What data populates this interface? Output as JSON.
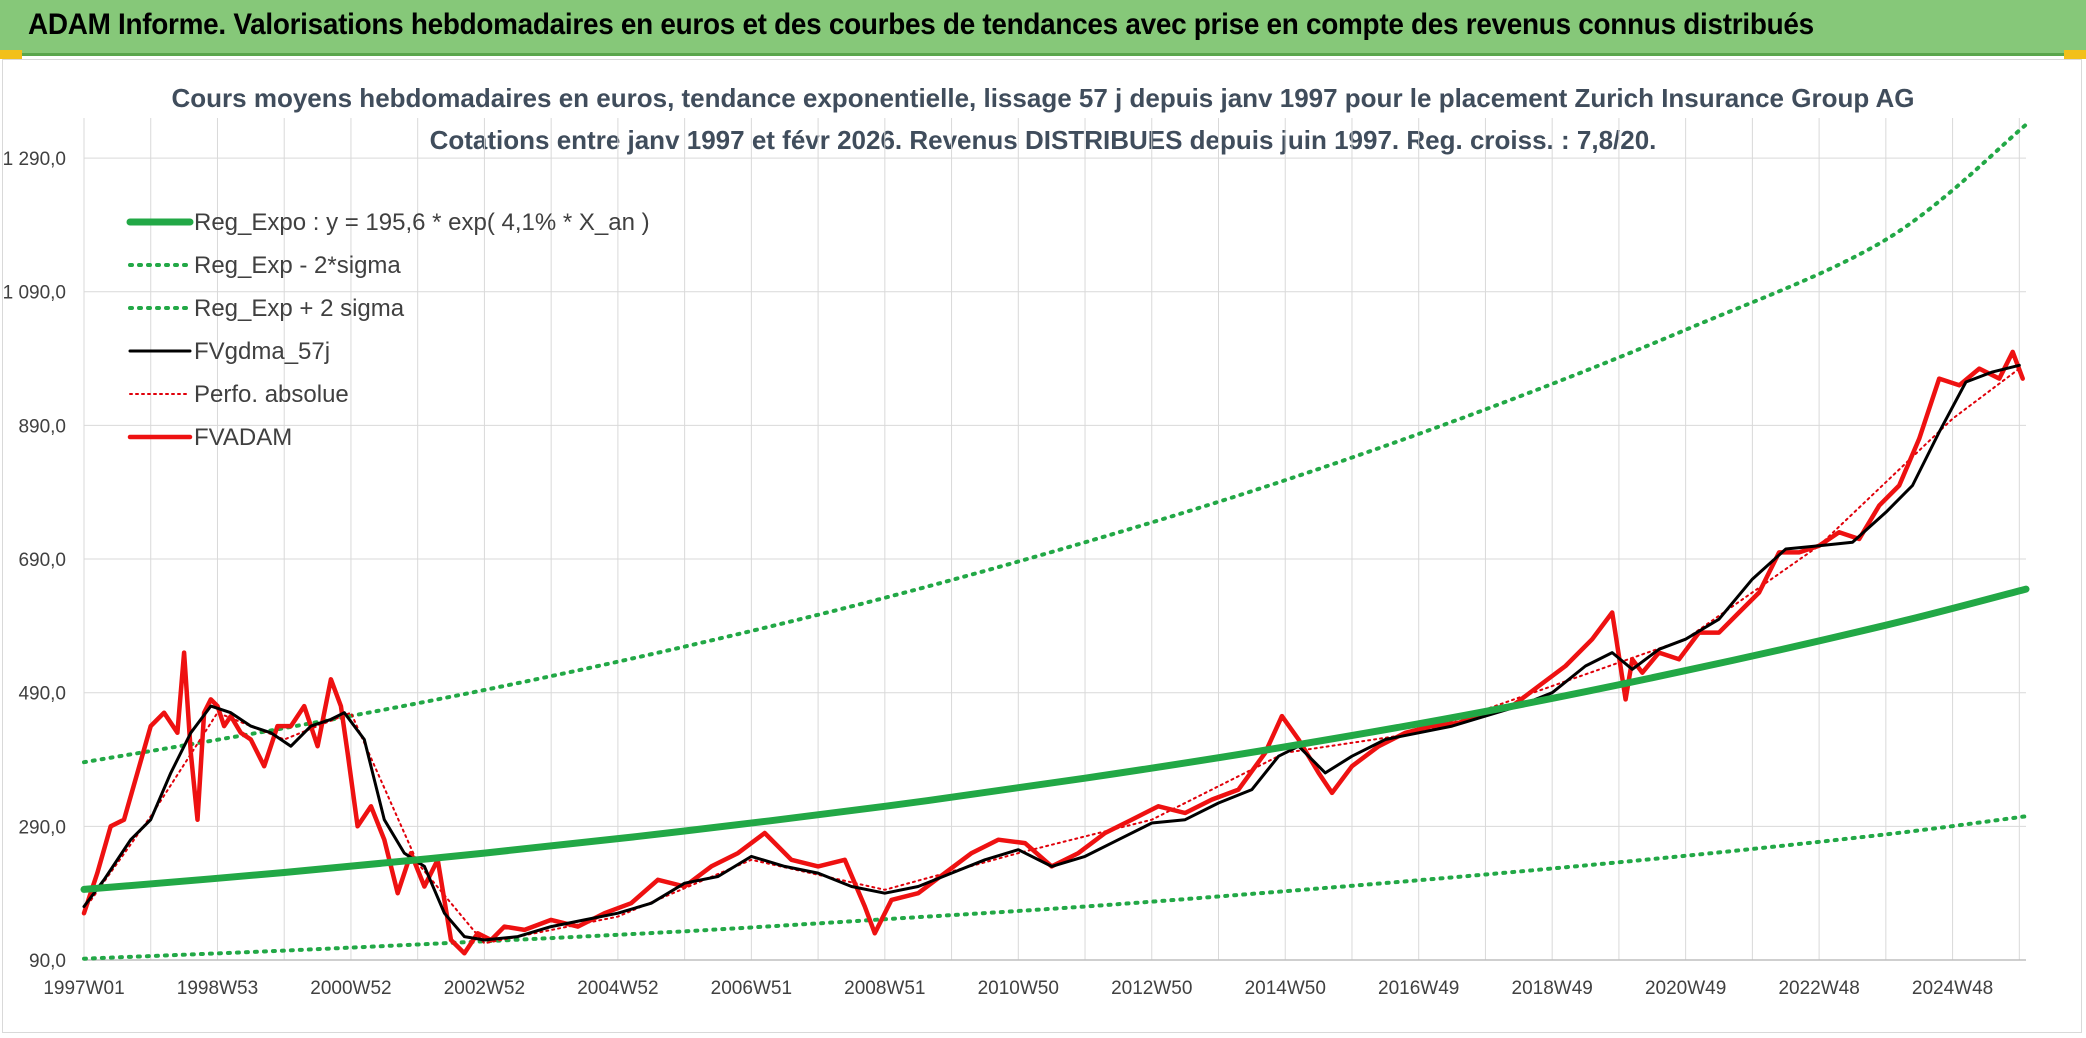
{
  "header": {
    "title": "ADAM Informe. Valorisations hebdomadaires en euros et des courbes de tendances avec prise en compte des revenus connus distribués"
  },
  "colors": {
    "header_bg": "#86c879",
    "reg_expo": "#22a846",
    "sigma": "#22a846",
    "fvgdma": "#000000",
    "perfo": "#e0000a",
    "fvadam": "#ee1111",
    "grid": "#d9d9d9"
  },
  "chart_data": {
    "type": "line",
    "title": "Cours moyens hebdomadaires en euros, tendance exponentielle, lissage 57 j depuis janv 1997 pour le placement Zurich Insurance Group AG",
    "subtitle": "Cotations entre janv 1997 et févr 2026. Revenus DISTRIBUES depuis juin 1997. Reg. croiss. : 7,8/20.",
    "xlabel": "",
    "ylabel": "",
    "x_range": [
      1997.0,
      2026.1
    ],
    "ylim": [
      90,
      1350
    ],
    "y_ticks": [
      90,
      290,
      490,
      690,
      890,
      1090,
      1290
    ],
    "y_tick_labels": [
      "90,0",
      "290,0",
      "490,0",
      "690,0",
      "890,0",
      "1 090,0",
      "1 290,0"
    ],
    "x_ticks": [
      1997.0,
      1999.0,
      2001.0,
      2003.0,
      2005.0,
      2007.0,
      2009.0,
      2011.0,
      2013.0,
      2015.0,
      2017.0,
      2019.0,
      2021.0,
      2023.0,
      2025.0
    ],
    "x_tick_labels": [
      "1997W01",
      "1998W53",
      "2000W52",
      "2002W52",
      "2004W52",
      "2006W51",
      "2008W51",
      "2010W50",
      "2012W50",
      "2014W50",
      "2016W49",
      "2018W49",
      "2020W49",
      "2022W48",
      "2024W48"
    ],
    "grid": true,
    "legend_position": "top-left",
    "series": [
      {
        "name": "Reg_Expo : y = 195,6 * exp( 4,1% *  X_an )",
        "style": "solid-thick",
        "x": [
          1997.0,
          2000.0,
          2003.0,
          2006.0,
          2009.0,
          2012.0,
          2015.0,
          2018.0,
          2021.0,
          2024.0,
          2026.1
        ],
        "values": [
          195.6,
          221,
          250,
          283,
          320,
          362,
          409,
          462,
          523,
          591,
          645
        ]
      },
      {
        "name": "Reg_Exp - 2*sigma",
        "style": "dotted",
        "x": [
          1997.0,
          2000.0,
          2003.0,
          2006.0,
          2009.0,
          2012.0,
          2015.0,
          2018.0,
          2021.0,
          2024.0,
          2026.1
        ],
        "values": [
          92,
          104,
          118,
          133,
          151,
          170,
          193,
          218,
          246,
          278,
          305
        ]
      },
      {
        "name": "Reg_Exp + 2 sigma",
        "style": "dotted",
        "x": [
          1997.0,
          2000.0,
          2003.0,
          2006.0,
          2009.0,
          2012.0,
          2015.0,
          2018.0,
          2021.0,
          2024.0,
          2026.1
        ],
        "values": [
          386,
          437,
          494,
          559,
          632,
          715,
          808,
          914,
          1033,
          1168,
          1340
        ]
      },
      {
        "name": "FVgdma_57j",
        "style": "solid-thin",
        "x": [
          1997.0,
          1997.3,
          1997.7,
          1998.0,
          1998.3,
          1998.6,
          1998.9,
          1999.2,
          1999.5,
          1999.8,
          2000.1,
          2000.4,
          2000.7,
          2000.9,
          2001.2,
          2001.5,
          2001.8,
          2002.1,
          2002.4,
          2002.7,
          2003.0,
          2003.5,
          2004.0,
          2004.5,
          2005.0,
          2005.5,
          2006.0,
          2006.5,
          2007.0,
          2007.5,
          2008.0,
          2008.5,
          2009.0,
          2009.5,
          2010.0,
          2010.5,
          2011.0,
          2011.5,
          2012.0,
          2012.5,
          2013.0,
          2013.5,
          2014.0,
          2014.5,
          2014.9,
          2015.2,
          2015.6,
          2016.0,
          2016.5,
          2017.0,
          2017.5,
          2018.0,
          2018.5,
          2019.0,
          2019.5,
          2019.9,
          2020.2,
          2020.6,
          2021.0,
          2021.5,
          2022.0,
          2022.5,
          2023.0,
          2023.5,
          2024.0,
          2024.4,
          2024.8,
          2025.2,
          2025.6,
          2026.0
        ],
        "values": [
          170,
          210,
          270,
          300,
          370,
          430,
          470,
          460,
          440,
          430,
          410,
          440,
          450,
          460,
          420,
          300,
          250,
          230,
          160,
          125,
          120,
          125,
          140,
          150,
          160,
          175,
          205,
          215,
          245,
          230,
          220,
          200,
          190,
          200,
          220,
          240,
          255,
          230,
          245,
          270,
          295,
          300,
          325,
          345,
          395,
          410,
          370,
          395,
          420,
          430,
          440,
          455,
          470,
          490,
          530,
          550,
          525,
          555,
          570,
          600,
          660,
          705,
          710,
          715,
          760,
          800,
          880,
          955,
          970,
          980
        ]
      },
      {
        "name": "Perfo. absolue",
        "style": "dotted-thin",
        "x": [
          1997.0,
          1998.0,
          1999.0,
          2000.0,
          2001.0,
          2002.0,
          2003.0,
          2005.0,
          2007.0,
          2009.0,
          2011.0,
          2013.0,
          2015.0,
          2017.0,
          2019.0,
          2021.0,
          2023.0,
          2025.0,
          2026.0
        ],
        "values": [
          165,
          305,
          460,
          420,
          460,
          235,
          115,
          155,
          240,
          195,
          250,
          300,
          400,
          430,
          500,
          570,
          710,
          900,
          975
        ]
      },
      {
        "name": "FVADAM",
        "style": "solid-medium",
        "x": [
          1997.0,
          1997.2,
          1997.4,
          1997.6,
          1997.8,
          1998.0,
          1998.2,
          1998.4,
          1998.5,
          1998.6,
          1998.7,
          1998.8,
          1998.9,
          1999.0,
          1999.1,
          1999.2,
          1999.35,
          1999.5,
          1999.7,
          1999.9,
          2000.1,
          2000.3,
          2000.5,
          2000.7,
          2000.85,
          2000.95,
          2001.1,
          2001.3,
          2001.5,
          2001.7,
          2001.9,
          2002.1,
          2002.3,
          2002.5,
          2002.7,
          2002.9,
          2003.1,
          2003.3,
          2003.6,
          2004.0,
          2004.4,
          2004.8,
          2005.2,
          2005.6,
          2006.0,
          2006.4,
          2006.8,
          2007.2,
          2007.6,
          2008.0,
          2008.4,
          2008.7,
          2008.85,
          2009.1,
          2009.5,
          2009.9,
          2010.3,
          2010.7,
          2011.1,
          2011.5,
          2011.9,
          2012.3,
          2012.7,
          2013.1,
          2013.5,
          2013.9,
          2014.3,
          2014.7,
          2014.95,
          2015.2,
          2015.5,
          2015.7,
          2016.0,
          2016.4,
          2016.8,
          2017.2,
          2017.6,
          2018.0,
          2018.4,
          2018.8,
          2019.2,
          2019.6,
          2019.9,
          2020.1,
          2020.2,
          2020.35,
          2020.6,
          2020.9,
          2021.2,
          2021.5,
          2021.8,
          2022.1,
          2022.4,
          2022.7,
          2023.0,
          2023.3,
          2023.6,
          2023.9,
          2024.2,
          2024.5,
          2024.8,
          2025.1,
          2025.4,
          2025.7,
          2025.9,
          2026.05
        ],
        "values": [
          160,
          220,
          290,
          300,
          370,
          440,
          460,
          430,
          550,
          400,
          300,
          460,
          480,
          470,
          440,
          455,
          430,
          420,
          380,
          440,
          440,
          470,
          410,
          510,
          470,
          400,
          290,
          320,
          270,
          190,
          250,
          200,
          240,
          120,
          100,
          130,
          120,
          140,
          135,
          150,
          140,
          160,
          175,
          210,
          200,
          230,
          250,
          280,
          240,
          230,
          240,
          170,
          130,
          180,
          190,
          220,
          250,
          270,
          265,
          230,
          250,
          280,
          300,
          320,
          310,
          330,
          345,
          400,
          455,
          420,
          370,
          340,
          380,
          410,
          430,
          440,
          445,
          460,
          470,
          500,
          530,
          570,
          610,
          480,
          540,
          520,
          550,
          540,
          580,
          580,
          610,
          640,
          700,
          700,
          710,
          730,
          720,
          770,
          800,
          870,
          960,
          950,
          975,
          960,
          1000,
          960
        ]
      }
    ]
  }
}
